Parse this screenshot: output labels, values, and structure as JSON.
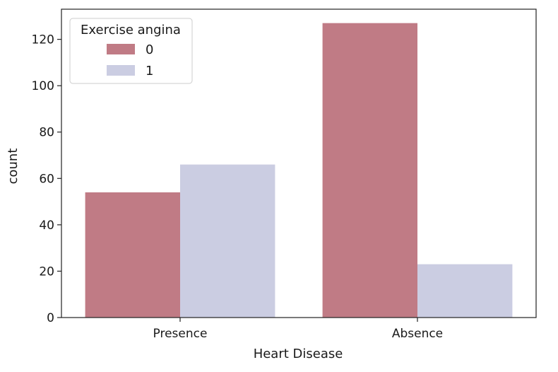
{
  "chart_data": {
    "type": "bar",
    "title": "",
    "xlabel": "Heart Disease",
    "ylabel": "count",
    "categories": [
      "Presence",
      "Absence"
    ],
    "series": [
      {
        "name": "0",
        "values": [
          54,
          127
        ],
        "color": "#c07b85"
      },
      {
        "name": "1",
        "values": [
          66,
          23
        ],
        "color": "#cbcde2"
      }
    ],
    "ylim": [
      0,
      133
    ],
    "yticks": [
      0,
      20,
      40,
      60,
      80,
      100,
      120
    ],
    "grid": false,
    "legend": {
      "title": "Exercise angina",
      "placement": "top-left"
    }
  }
}
